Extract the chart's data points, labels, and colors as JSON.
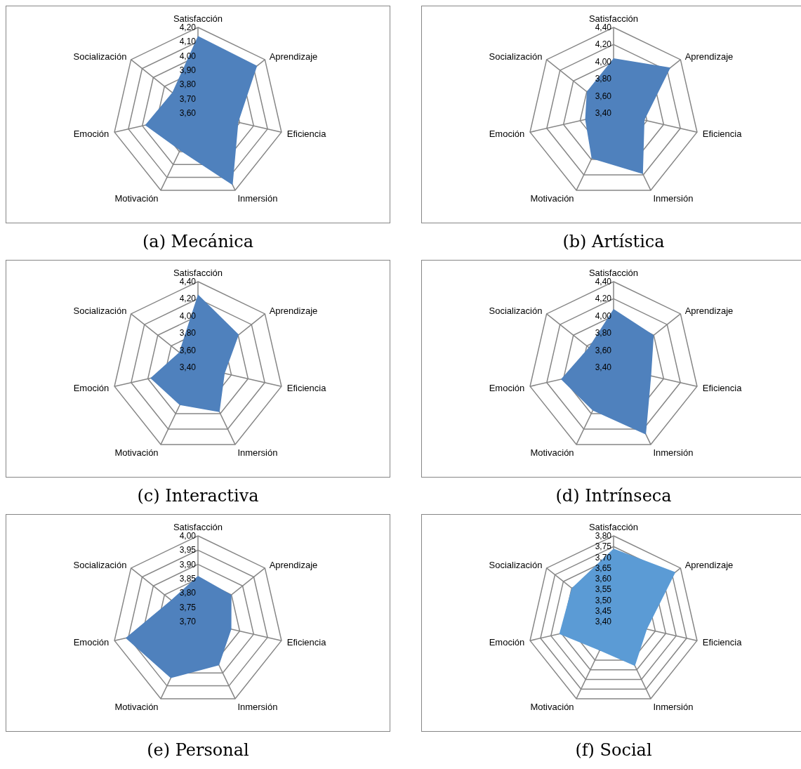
{
  "chart_data": [
    {
      "type": "radar",
      "title": "(a) Mecánica",
      "grid": true,
      "categories": [
        "Satisfacción",
        "Aprendizaje",
        "Eficiencia",
        "Inmersión",
        "Motivación",
        "Emoción",
        "Socialización"
      ],
      "ylim": [
        3.6,
        4.2
      ],
      "yticks": [
        {
          "value": 3.6,
          "label": "3,60"
        },
        {
          "value": 3.7,
          "label": "3,70"
        },
        {
          "value": 3.8,
          "label": "3,80"
        },
        {
          "value": 3.9,
          "label": "3,90"
        },
        {
          "value": 4.0,
          "label": "4,00"
        },
        {
          "value": 4.1,
          "label": "4,10"
        },
        {
          "value": 4.2,
          "label": "4,20"
        }
      ],
      "series": [
        {
          "color": "#4f81bd",
          "values": [
            4.14,
            4.13,
            3.89,
            4.16,
            3.89,
            3.98,
            3.83
          ]
        }
      ]
    },
    {
      "type": "radar",
      "title": "(b) Artística",
      "grid": true,
      "categories": [
        "Satisfacción",
        "Aprendizaje",
        "Eficiencia",
        "Inmersión",
        "Motivación",
        "Emoción",
        "Socialización"
      ],
      "ylim": [
        3.4,
        4.4
      ],
      "yticks": [
        {
          "value": 3.4,
          "label": "3,40"
        },
        {
          "value": 3.6,
          "label": "3,60"
        },
        {
          "value": 3.8,
          "label": "3,80"
        },
        {
          "value": 4.0,
          "label": "4,00"
        },
        {
          "value": 4.2,
          "label": "4,20"
        },
        {
          "value": 4.4,
          "label": "4,40"
        }
      ],
      "series": [
        {
          "color": "#4f81bd",
          "values": [
            4.04,
            4.25,
            3.77,
            4.19,
            3.99,
            3.74,
            3.8
          ]
        }
      ]
    },
    {
      "type": "radar",
      "title": "(c) Interactiva",
      "grid": true,
      "categories": [
        "Satisfacción",
        "Aprendizaje",
        "Eficiencia",
        "Inmersión",
        "Motivación",
        "Emoción",
        "Socialización"
      ],
      "ylim": [
        3.4,
        4.4
      ],
      "yticks": [
        {
          "value": 3.4,
          "label": "3,40"
        },
        {
          "value": 3.6,
          "label": "3,60"
        },
        {
          "value": 3.8,
          "label": "3,80"
        },
        {
          "value": 4.0,
          "label": "4,00"
        },
        {
          "value": 4.2,
          "label": "4,20"
        },
        {
          "value": 4.4,
          "label": "4,40"
        }
      ],
      "series": [
        {
          "color": "#4f81bd",
          "values": [
            4.25,
            4.01,
            3.72,
            3.98,
            3.89,
            3.97,
            3.68
          ]
        }
      ]
    },
    {
      "type": "radar",
      "title": "(d) Intrínseca",
      "grid": true,
      "categories": [
        "Satisfacción",
        "Aprendizaje",
        "Eficiencia",
        "Inmersión",
        "Motivación",
        "Emoción",
        "Socialización"
      ],
      "ylim": [
        3.4,
        4.4
      ],
      "yticks": [
        {
          "value": 3.4,
          "label": "3,40"
        },
        {
          "value": 3.6,
          "label": "3,60"
        },
        {
          "value": 3.8,
          "label": "3,80"
        },
        {
          "value": 4.0,
          "label": "4,00"
        },
        {
          "value": 4.2,
          "label": "4,20"
        },
        {
          "value": 4.4,
          "label": "4,40"
        }
      ],
      "series": [
        {
          "color": "#4f81bd",
          "values": [
            4.08,
            4.0,
            3.85,
            4.27,
            3.96,
            4.03,
            3.77
          ]
        }
      ]
    },
    {
      "type": "radar",
      "title": "(e) Personal",
      "grid": true,
      "categories": [
        "Satisfacción",
        "Aprendizaje",
        "Eficiencia",
        "Inmersión",
        "Motivación",
        "Emoción",
        "Socialización"
      ],
      "ylim": [
        3.7,
        4.0
      ],
      "yticks": [
        {
          "value": 3.7,
          "label": "3,70"
        },
        {
          "value": 3.75,
          "label": "3,75"
        },
        {
          "value": 3.8,
          "label": "3,80"
        },
        {
          "value": 3.85,
          "label": "3,85"
        },
        {
          "value": 3.9,
          "label": "3,90"
        },
        {
          "value": 3.95,
          "label": "3,95"
        },
        {
          "value": 4.0,
          "label": "4,00"
        }
      ],
      "series": [
        {
          "color": "#4f81bd",
          "values": [
            3.86,
            3.85,
            3.82,
            3.87,
            3.92,
            3.96,
            3.82
          ]
        }
      ]
    },
    {
      "type": "radar",
      "title": "(f) Social",
      "grid": true,
      "categories": [
        "Satisfacción",
        "Aprendizaje",
        "Eficiencia",
        "Inmersión",
        "Motivación",
        "Emoción",
        "Socialización"
      ],
      "ylim": [
        3.4,
        3.8
      ],
      "yticks": [
        {
          "value": 3.4,
          "label": "3,40"
        },
        {
          "value": 3.45,
          "label": "3,45"
        },
        {
          "value": 3.5,
          "label": "3,50"
        },
        {
          "value": 3.55,
          "label": "3,55"
        },
        {
          "value": 3.6,
          "label": "3,60"
        },
        {
          "value": 3.65,
          "label": "3,65"
        },
        {
          "value": 3.7,
          "label": "3,70"
        },
        {
          "value": 3.75,
          "label": "3,75"
        },
        {
          "value": 3.8,
          "label": "3,80"
        }
      ],
      "series": [
        {
          "color": "#5b9bd5",
          "values": [
            3.74,
            3.77,
            3.56,
            3.63,
            3.55,
            3.66,
            3.65
          ]
        }
      ]
    }
  ]
}
